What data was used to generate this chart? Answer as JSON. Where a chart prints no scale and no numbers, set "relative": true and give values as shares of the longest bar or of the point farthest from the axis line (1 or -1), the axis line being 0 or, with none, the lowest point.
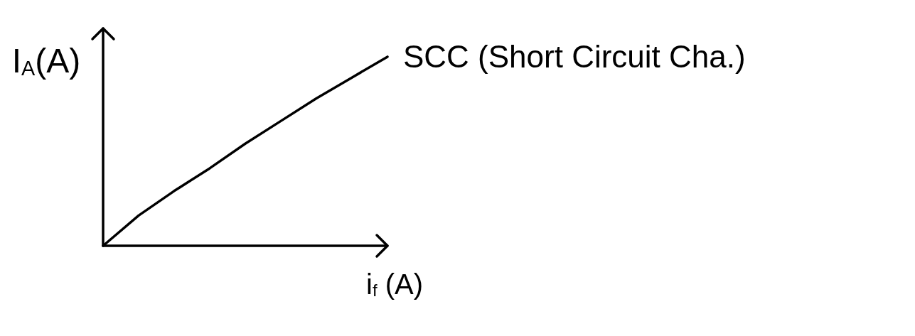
{
  "chart_data": {
    "type": "line",
    "xlabel": "i$_{f}$ (A)",
    "ylabel": "I$_{A}$(A)",
    "relative": true,
    "categories": [
      null,
      null,
      null,
      null,
      null,
      null,
      null,
      null,
      null
    ],
    "series": [
      {
        "name": "SCC (Short Circuit Cha.)",
        "color": "#000000",
        "values": [
          0,
          0.16,
          0.29,
          0.41,
          0.54,
          0.66,
          0.78,
          0.89,
          1
        ]
      }
    ],
    "marker": "none",
    "line_style": "solid"
  }
}
